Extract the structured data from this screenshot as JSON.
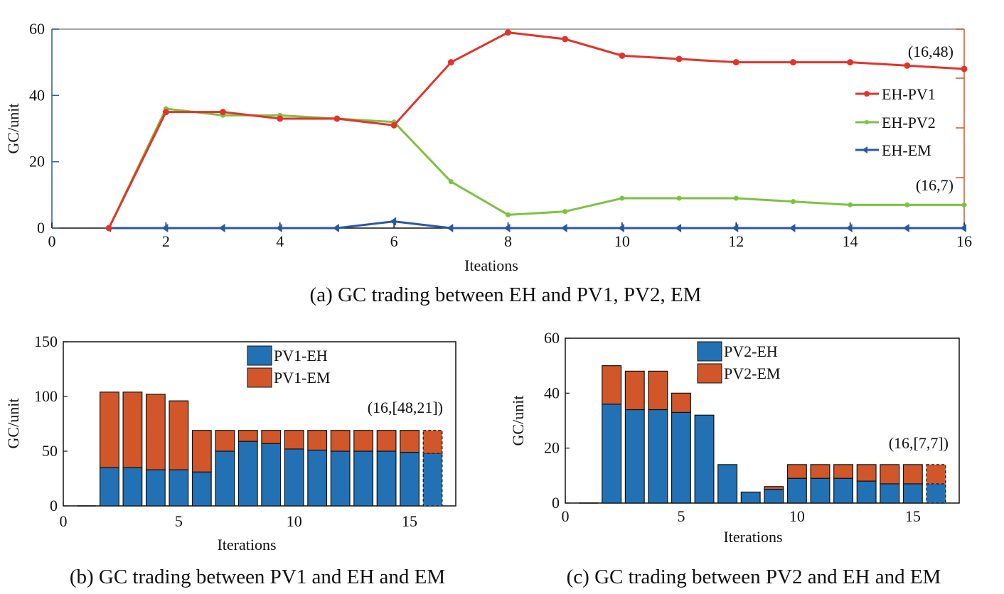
{
  "colors": {
    "eh_pv1": "#e0352b",
    "eh_pv2": "#7cc242",
    "eh_em": "#2a58a8",
    "bar_blue": "#2271b5",
    "bar_orange": "#d1572a",
    "bracket": "#d1572a"
  },
  "chart_data": [
    {
      "type": "line",
      "caption": "(a) GC trading between EH and PV1, PV2, EM",
      "xlabel": "Iteations",
      "ylabel": "GC/unit",
      "xlim": [
        0,
        16
      ],
      "ylim": [
        0,
        60
      ],
      "xticks": [
        0,
        2,
        4,
        6,
        8,
        10,
        12,
        14,
        16
      ],
      "yticks": [
        0,
        20,
        40,
        60
      ],
      "x": [
        1,
        2,
        3,
        4,
        5,
        6,
        7,
        8,
        9,
        10,
        11,
        12,
        13,
        14,
        15,
        16
      ],
      "series": [
        {
          "name": "EH-PV1",
          "values": [
            0,
            35,
            35,
            33,
            33,
            31,
            50,
            59,
            57,
            52,
            51,
            50,
            50,
            50,
            49,
            48
          ]
        },
        {
          "name": "EH-PV2",
          "values": [
            0,
            36,
            34,
            34,
            33,
            32,
            14,
            4,
            5,
            9,
            9,
            9,
            8,
            7,
            7,
            7
          ]
        },
        {
          "name": "EH-EM",
          "values": [
            0,
            0,
            0,
            0,
            0,
            2,
            0,
            0,
            0,
            0,
            0,
            0,
            0,
            0,
            0,
            0
          ]
        }
      ],
      "annotations": [
        "(16,48)",
        "(16,7)"
      ],
      "legend": "right"
    },
    {
      "type": "bar",
      "stacked": true,
      "caption": "(b) GC trading between PV1 and EH and EM",
      "xlabel": "Iterations",
      "ylabel": "GC/unit",
      "xlim": [
        0,
        17
      ],
      "ylim": [
        0,
        150
      ],
      "xticks": [
        0,
        5,
        10,
        15
      ],
      "yticks": [
        0,
        50,
        100,
        150
      ],
      "x": [
        1,
        2,
        3,
        4,
        5,
        6,
        7,
        8,
        9,
        10,
        11,
        12,
        13,
        14,
        15,
        16
      ],
      "series": [
        {
          "name": "PV1-EH",
          "values": [
            0,
            35,
            35,
            33,
            33,
            31,
            50,
            59,
            57,
            52,
            51,
            50,
            50,
            50,
            49,
            48
          ]
        },
        {
          "name": "PV1-EM",
          "values": [
            0,
            69,
            69,
            69,
            63,
            38,
            19,
            10,
            12,
            17,
            18,
            19,
            19,
            19,
            20,
            21
          ]
        }
      ],
      "annotation": "(16,[48,21])",
      "legend": "top"
    },
    {
      "type": "bar",
      "stacked": true,
      "caption": "(c) GC trading between PV2 and EH and EM",
      "xlabel": "Iterations",
      "ylabel": "GC/unit",
      "xlim": [
        0,
        17
      ],
      "ylim": [
        0,
        60
      ],
      "xticks": [
        0,
        5,
        10,
        15
      ],
      "yticks": [
        0,
        20,
        40,
        60
      ],
      "x": [
        1,
        2,
        3,
        4,
        5,
        6,
        7,
        8,
        9,
        10,
        11,
        12,
        13,
        14,
        15,
        16
      ],
      "series": [
        {
          "name": "PV2-EH",
          "values": [
            0,
            36,
            34,
            34,
            33,
            32,
            14,
            4,
            5,
            9,
            9,
            9,
            8,
            7,
            7,
            7
          ]
        },
        {
          "name": "PV2-EM",
          "values": [
            0,
            14,
            14,
            14,
            7,
            0,
            0,
            0,
            1,
            5,
            5,
            5,
            6,
            7,
            7,
            7
          ]
        }
      ],
      "annotation": "(16,[7,7])",
      "legend": "top"
    }
  ]
}
